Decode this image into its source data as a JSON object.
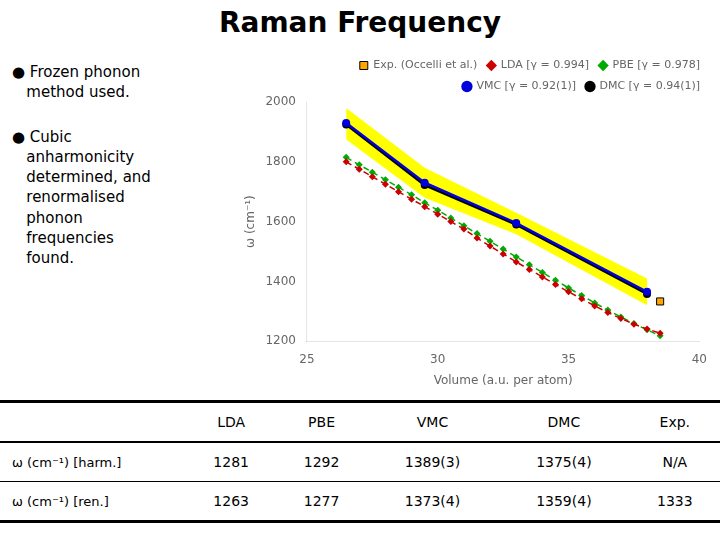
{
  "chart_data": {
    "type": "line",
    "title": "Raman Frequency",
    "xlabel": "Volume (a.u. per atom)",
    "ylabel": "ω (cm⁻¹)",
    "xlim": [
      25,
      40
    ],
    "ylim": [
      1200,
      2000
    ],
    "xticks": [
      25,
      30,
      35,
      40
    ],
    "yticks": [
      1200,
      1400,
      1600,
      1800,
      2000
    ],
    "grid": false,
    "legend": "upper right",
    "band": {
      "x": [
        26.5,
        29.5,
        33.0,
        38.0
      ],
      "lower": [
        1875,
        1680,
        1558,
        1320
      ],
      "upper": [
        1980,
        1780,
        1630,
        1410
      ],
      "color": "yellow"
    },
    "series": [
      {
        "name": "Exp. (Occelli et al.)",
        "color": "#FFA500",
        "marker": "square",
        "line_style": "none",
        "x": [
          38.5
        ],
        "values": [
          1333
        ]
      },
      {
        "name": "LDA [γ = 0.994]",
        "color": "#CC0000",
        "marker": "diamond",
        "line_style": "dashed",
        "x": [
          26.5,
          27.0,
          27.5,
          28.0,
          28.5,
          29.0,
          29.5,
          30.0,
          30.5,
          31.0,
          31.5,
          32.0,
          32.5,
          33.0,
          33.5,
          34.0,
          34.5,
          35.0,
          35.5,
          36.0,
          36.5,
          37.0,
          37.5,
          38.0,
          38.5
        ],
        "values": [
          1800,
          1775,
          1750,
          1725,
          1700,
          1675,
          1650,
          1625,
          1600,
          1575,
          1545,
          1518,
          1492,
          1465,
          1440,
          1415,
          1390,
          1365,
          1342,
          1318,
          1296,
          1276,
          1257,
          1241,
          1227
        ]
      },
      {
        "name": "PBE [γ = 0.978]",
        "color": "#00AA00",
        "marker": "diamond",
        "line_style": "dashed",
        "x": [
          26.5,
          27.0,
          27.5,
          28.0,
          28.5,
          29.0,
          29.5,
          30.0,
          30.5,
          31.0,
          31.5,
          32.0,
          32.5,
          33.0,
          33.5,
          34.0,
          34.5,
          35.0,
          35.5,
          36.0,
          36.5,
          37.0,
          37.5,
          38.0,
          38.5
        ],
        "values": [
          1815,
          1790,
          1765,
          1740,
          1715,
          1690,
          1663,
          1638,
          1612,
          1586,
          1560,
          1534,
          1508,
          1482,
          1456,
          1430,
          1404,
          1378,
          1353,
          1328,
          1304,
          1281,
          1259,
          1238,
          1218
        ]
      },
      {
        "name": "VMC [γ = 0.92(1)]",
        "color": "#0000DD",
        "marker": "circle",
        "line_style": "solid",
        "x": [
          26.5,
          29.5,
          33.0,
          38.0
        ],
        "values": [
          1930,
          1730,
          1595,
          1365
        ]
      },
      {
        "name": "DMC [γ = 0.94(1)]",
        "color": "#000000",
        "marker": "circle",
        "line_style": "solid",
        "x": [
          26.5,
          29.5,
          33.0,
          38.0
        ],
        "values": [
          1925,
          1722,
          1590,
          1358
        ]
      }
    ]
  },
  "bullets": [
    "● Frozen phonon\n   method used.",
    "● Cubic\n   anharmonicity\n   determined, and\n   renormalised\n   phonon\n   frequencies\n   found."
  ],
  "table": {
    "columns": [
      "LDA",
      "PBE",
      "VMC",
      "DMC",
      "Exp."
    ],
    "rows": [
      {
        "label": "ω (cm⁻¹) [harm.]",
        "values": [
          "1281",
          "1292",
          "1389(3)",
          "1375(4)",
          "N/A"
        ]
      },
      {
        "label": "ω (cm⁻¹) [ren.]",
        "values": [
          "1263",
          "1277",
          "1373(4)",
          "1359(4)",
          "1333"
        ]
      }
    ]
  }
}
